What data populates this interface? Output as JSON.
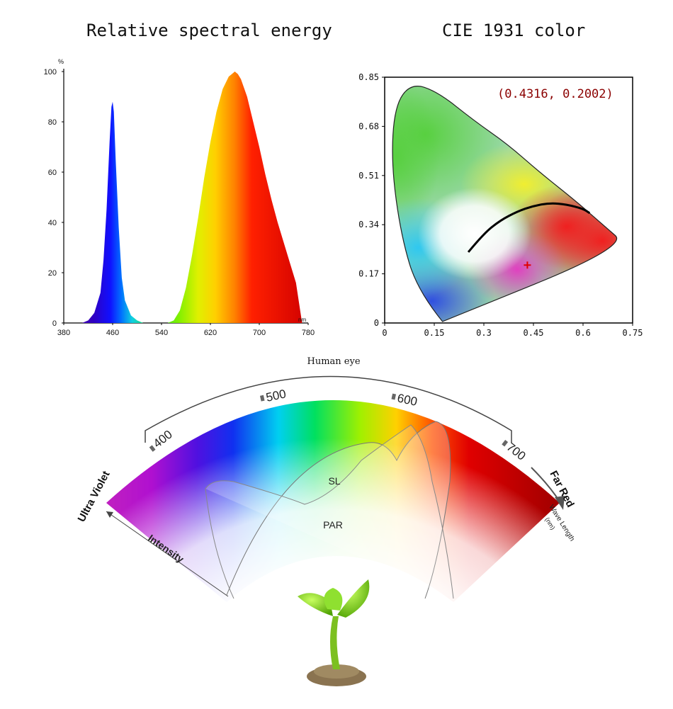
{
  "chart_data": [
    {
      "type": "area",
      "title": "Relative spectral energy",
      "ylabel": "%",
      "xlabel": "nm",
      "xlim": [
        380,
        780
      ],
      "ylim": [
        0,
        100
      ],
      "x_ticks": [
        "380",
        "460",
        "540",
        "620",
        "700",
        "780"
      ],
      "y_ticks": [
        "0",
        "20",
        "40",
        "60",
        "80",
        "100"
      ],
      "series": [
        {
          "x": [
            410,
            420,
            430,
            440,
            445,
            450,
            455,
            458,
            460,
            462,
            465,
            470,
            475,
            480,
            490,
            500,
            510,
            520,
            530,
            540,
            550,
            560,
            570,
            580,
            590,
            600,
            610,
            620,
            630,
            640,
            650,
            655,
            660,
            665,
            670,
            680,
            690,
            700,
            710,
            720,
            730,
            740,
            750,
            760,
            765,
            770
          ],
          "y": [
            0,
            1,
            4,
            12,
            25,
            45,
            72,
            86,
            88,
            84,
            65,
            38,
            18,
            9,
            3,
            1,
            0,
            0,
            0,
            0,
            0,
            1,
            5,
            14,
            27,
            42,
            58,
            72,
            84,
            93,
            98,
            99,
            100,
            99,
            97,
            90,
            80,
            70,
            59,
            49,
            40,
            32,
            24,
            16,
            8,
            0
          ]
        }
      ]
    },
    {
      "type": "scatter",
      "title": "CIE 1931 color",
      "xlim": [
        0,
        0.75
      ],
      "ylim": [
        0,
        0.85
      ],
      "x_ticks": [
        "0",
        "0.15",
        "0.3",
        "0.45",
        "0.6",
        "0.75"
      ],
      "y_ticks": [
        "0",
        "0.17",
        "0.34",
        "0.51",
        "0.68",
        "0.85"
      ],
      "annotation": "(0.4316, 0.2002)",
      "point": {
        "x": 0.4316,
        "y": 0.2002
      },
      "locus": [
        [
          0.175,
          0.005
        ],
        [
          0.1,
          0.11
        ],
        [
          0.05,
          0.3
        ],
        [
          0.02,
          0.55
        ],
        [
          0.03,
          0.75
        ],
        [
          0.08,
          0.83
        ],
        [
          0.16,
          0.8
        ],
        [
          0.27,
          0.7
        ],
        [
          0.37,
          0.62
        ],
        [
          0.47,
          0.52
        ],
        [
          0.58,
          0.42
        ],
        [
          0.66,
          0.34
        ],
        [
          0.735,
          0.265
        ],
        [
          0.175,
          0.005
        ]
      ],
      "planckian": [
        [
          0.253,
          0.245
        ],
        [
          0.3,
          0.31
        ],
        [
          0.35,
          0.355
        ],
        [
          0.4,
          0.385
        ],
        [
          0.45,
          0.405
        ],
        [
          0.5,
          0.415
        ],
        [
          0.55,
          0.41
        ],
        [
          0.6,
          0.395
        ],
        [
          0.62,
          0.38
        ]
      ]
    }
  ],
  "diagram": {
    "human_eye": "Human eye",
    "tick_400": "400",
    "tick_500": "500",
    "tick_600": "600",
    "tick_700": "700",
    "ultra_violet": "Ultra Violet",
    "far_red": "Far Red",
    "wave_length": "Wave Length",
    "wave_unit": "(nm)",
    "intensity": "Intensity",
    "sl": "SL",
    "par": "PAR"
  },
  "colors": {
    "blue_peak": "#1a1aff",
    "red_peak": "#e00000",
    "marker": "#e00000",
    "annotation": "#8b0000"
  }
}
